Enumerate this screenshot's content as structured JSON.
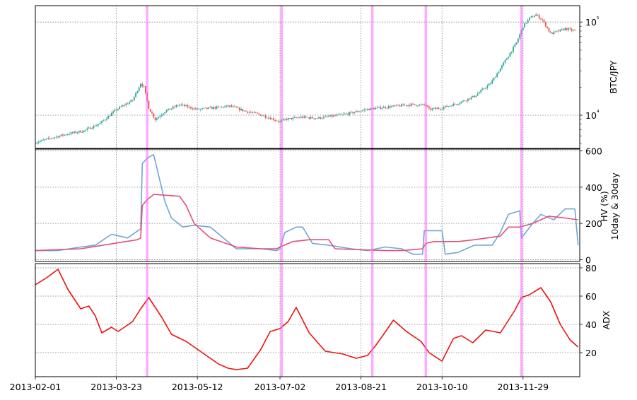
{
  "chart_data": [
    {
      "type": "candlestick",
      "panel": "price",
      "ylabel": "BTC/JPY",
      "yscale": "log",
      "ylim": [
        4400,
        150000
      ],
      "yticks": [
        {
          "value": 10000,
          "label": "10⁴"
        },
        {
          "value": 100000,
          "label": "10⁵"
        }
      ],
      "up_color": "#26a69a",
      "down_color": "#ef5350",
      "x": [
        "2013-02-01",
        "2013-02-11",
        "2013-02-21",
        "2013-03-03",
        "2013-03-13",
        "2013-03-23",
        "2013-04-02",
        "2013-04-07",
        "2013-04-09",
        "2013-04-12",
        "2013-04-16",
        "2013-04-22",
        "2013-05-01",
        "2013-05-12",
        "2013-05-22",
        "2013-06-01",
        "2013-06-11",
        "2013-06-21",
        "2013-07-02",
        "2013-07-05",
        "2013-07-15",
        "2013-07-25",
        "2013-08-04",
        "2013-08-14",
        "2013-08-24",
        "2013-09-01",
        "2013-09-11",
        "2013-09-21",
        "2013-09-30",
        "2013-10-02",
        "2013-10-10",
        "2013-10-20",
        "2013-10-30",
        "2013-11-09",
        "2013-11-17",
        "2013-11-25",
        "2013-11-29",
        "2013-12-03",
        "2013-12-07",
        "2013-12-11",
        "2013-12-16",
        "2013-12-21",
        "2013-12-25",
        "2013-12-31"
      ],
      "close": [
        5100,
        5700,
        6300,
        6800,
        8200,
        11500,
        14500,
        22000,
        20000,
        12000,
        9000,
        11000,
        13000,
        11500,
        12000,
        12500,
        11000,
        10000,
        8500,
        9000,
        9500,
        9300,
        9800,
        10500,
        11500,
        12000,
        12500,
        13000,
        12800,
        11500,
        12000,
        13500,
        16000,
        22000,
        36000,
        60000,
        90000,
        110000,
        120000,
        105000,
        75000,
        80000,
        85000,
        80000
      ]
    },
    {
      "type": "line",
      "panel": "volatility",
      "ylabel": "HV (%)\n10day & 30day",
      "ylim": [
        -10,
        610
      ],
      "yticks": [
        0,
        200,
        400,
        600
      ],
      "series": [
        {
          "color": "#6ea6d6",
          "x": [
            "2013-02-01",
            "2013-02-15",
            "2013-03-01",
            "2013-03-10",
            "2013-03-20",
            "2013-03-30",
            "2013-04-07",
            "2013-04-08",
            "2013-04-11",
            "2013-04-15",
            "2013-04-22",
            "2013-04-26",
            "2013-05-03",
            "2013-05-10",
            "2013-05-20",
            "2013-06-05",
            "2013-06-20",
            "2013-06-30",
            "2013-07-02",
            "2013-07-05",
            "2013-07-12",
            "2013-07-16",
            "2013-07-22",
            "2013-08-01",
            "2013-08-15",
            "2013-08-25",
            "2013-09-05",
            "2013-09-15",
            "2013-09-22",
            "2013-09-28",
            "2013-09-29",
            "2013-10-10",
            "2013-10-12",
            "2013-10-20",
            "2013-10-30",
            "2013-11-10",
            "2013-11-15",
            "2013-11-20",
            "2013-11-27",
            "2013-11-28",
            "2013-12-05",
            "2013-12-10",
            "2013-12-18",
            "2013-12-25",
            "2013-12-31",
            "2014-01-02"
          ],
          "y": [
            50,
            50,
            70,
            80,
            140,
            120,
            170,
            530,
            560,
            580,
            320,
            230,
            180,
            190,
            180,
            60,
            60,
            50,
            60,
            150,
            180,
            180,
            90,
            80,
            60,
            50,
            70,
            60,
            30,
            30,
            160,
            160,
            30,
            40,
            80,
            80,
            150,
            250,
            270,
            120,
            200,
            250,
            220,
            280,
            280,
            80
          ]
        },
        {
          "color": "#e05078",
          "x": [
            "2013-02-01",
            "2013-03-01",
            "2013-04-05",
            "2013-04-07",
            "2013-04-08",
            "2013-04-11",
            "2013-04-15",
            "2013-05-01",
            "2013-05-05",
            "2013-05-10",
            "2013-05-20",
            "2013-06-05",
            "2013-06-20",
            "2013-06-30",
            "2013-07-02",
            "2013-07-10",
            "2013-07-20",
            "2013-08-01",
            "2013-08-05",
            "2013-09-05",
            "2013-09-15",
            "2013-09-22",
            "2013-09-28",
            "2013-09-30",
            "2013-10-05",
            "2013-10-20",
            "2013-10-30",
            "2013-11-15",
            "2013-11-20",
            "2013-11-27",
            "2013-12-05",
            "2013-12-15",
            "2013-12-25",
            "2014-01-02"
          ],
          "y": [
            50,
            60,
            110,
            120,
            300,
            330,
            360,
            350,
            300,
            200,
            120,
            70,
            60,
            60,
            70,
            100,
            110,
            110,
            60,
            50,
            50,
            55,
            60,
            90,
            100,
            100,
            110,
            130,
            180,
            180,
            200,
            240,
            230,
            220
          ]
        }
      ]
    },
    {
      "type": "line",
      "panel": "adx",
      "ylabel": "ADX",
      "ylim": [
        3,
        83
      ],
      "yticks": [
        20,
        40,
        60,
        80
      ],
      "series": [
        {
          "color": "#ee1111",
          "x": [
            "2013-02-01",
            "2013-02-08",
            "2013-02-15",
            "2013-02-21",
            "2013-03-01",
            "2013-03-06",
            "2013-03-10",
            "2013-03-14",
            "2013-03-20",
            "2013-03-24",
            "2013-03-28",
            "2013-04-02",
            "2013-04-07",
            "2013-04-12",
            "2013-04-20",
            "2013-04-26",
            "2013-05-05",
            "2013-05-15",
            "2013-05-25",
            "2013-05-31",
            "2013-06-05",
            "2013-06-12",
            "2013-06-20",
            "2013-06-26",
            "2013-07-02",
            "2013-07-07",
            "2013-07-12",
            "2013-07-20",
            "2013-07-30",
            "2013-08-10",
            "2013-08-18",
            "2013-08-25",
            "2013-08-30",
            "2013-09-04",
            "2013-09-10",
            "2013-09-18",
            "2013-09-27",
            "2013-10-02",
            "2013-10-10",
            "2013-10-17",
            "2013-10-22",
            "2013-10-29",
            "2013-11-06",
            "2013-11-15",
            "2013-11-24",
            "2013-11-28",
            "2013-12-03",
            "2013-12-10",
            "2013-12-16",
            "2013-12-22",
            "2013-12-28",
            "2014-01-02"
          ],
          "y": [
            68,
            73,
            79,
            65,
            51,
            53,
            46,
            34,
            38,
            35,
            38,
            42,
            51,
            59,
            45,
            33,
            28,
            20,
            12,
            9,
            8,
            9,
            22,
            35,
            37,
            42,
            52,
            34,
            21,
            19,
            16,
            18,
            25,
            33,
            43,
            35,
            28,
            20,
            14,
            30,
            32,
            27,
            36,
            34,
            50,
            59,
            61,
            66,
            56,
            40,
            29,
            24
          ]
        }
      ]
    }
  ],
  "x_axis": {
    "ticks": [
      "2013-02-01",
      "2013-03-23",
      "2013-05-12",
      "2013-07-02",
      "2013-08-21",
      "2013-10-10",
      "2013-11-29"
    ]
  },
  "event_lines": {
    "color": "#ff66ff",
    "dates": [
      "2013-04-11",
      "2013-07-03",
      "2013-08-28",
      "2013-09-30",
      "2013-11-28"
    ]
  }
}
